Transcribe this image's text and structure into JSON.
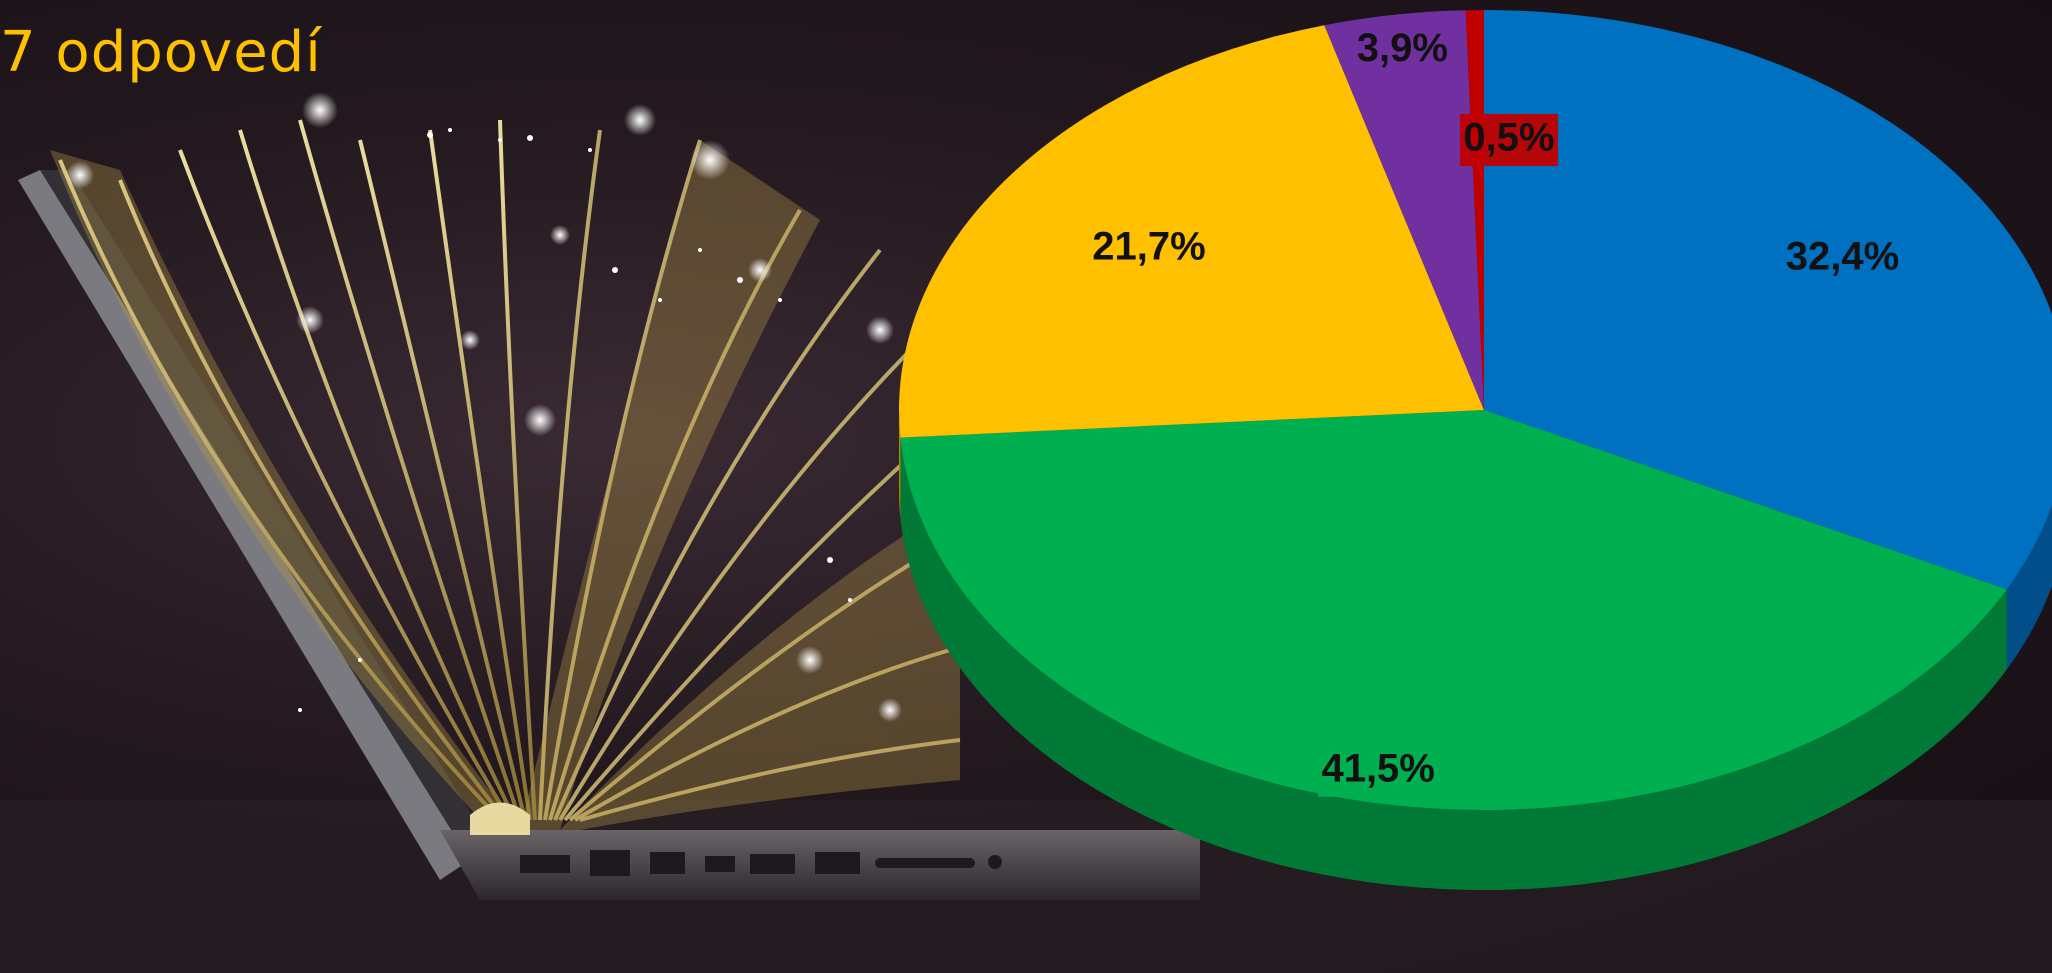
{
  "header": {
    "text": "7 odpovedí"
  },
  "background": {
    "image": "laptop-with-open-book-sparkles"
  },
  "colors": {
    "blue": "#0070c0",
    "green": "#00b050",
    "yellow": "#ffc000",
    "purple": "#7030a0",
    "red": "#c00000"
  },
  "chart_data": {
    "type": "pie",
    "title": "",
    "legend": "none",
    "slices": [
      {
        "value": 32.4,
        "label": "32,4%",
        "color": "#0070c0",
        "side_color": "#004f8a"
      },
      {
        "value": 41.5,
        "label": "41,5%",
        "color": "#00b050",
        "side_color": "#007a36"
      },
      {
        "value": 21.7,
        "label": "21,7%",
        "color": "#ffc000",
        "side_color": "#b38600"
      },
      {
        "value": 3.9,
        "label": "3,9%",
        "color": "#7030a0",
        "side_color": "#4e2170"
      },
      {
        "value": 0.5,
        "label": "0,5%",
        "color": "#c00000",
        "side_color": "#860000"
      }
    ]
  }
}
